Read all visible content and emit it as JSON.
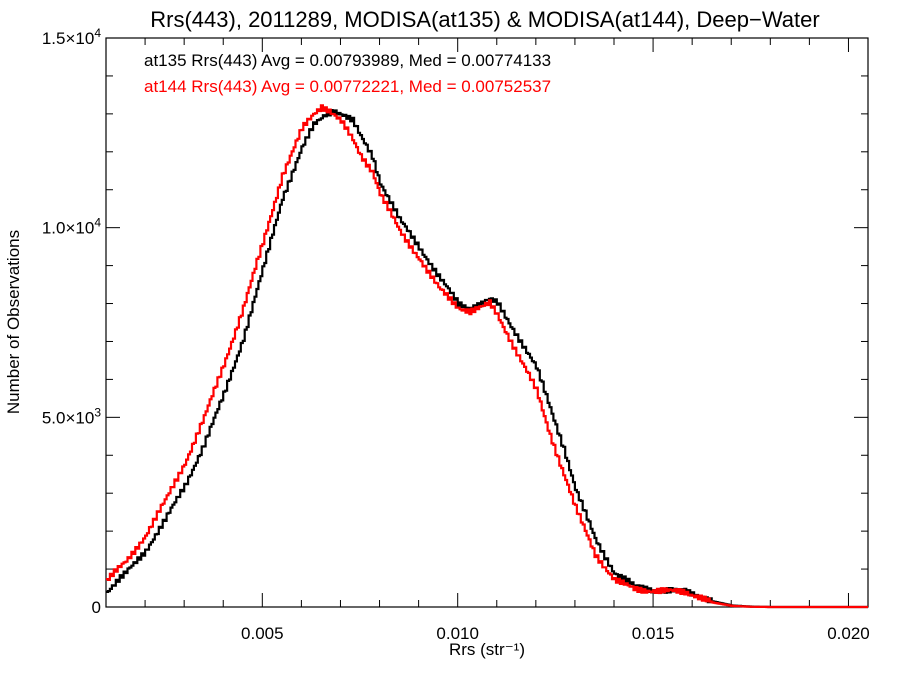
{
  "chart_data": {
    "type": "line",
    "title": "Rrs(443), 2011289, MODISA(at135) & MODISA(at144), Deep−Water",
    "xlabel": "Rrs (str⁻¹)",
    "ylabel": "Number of Observations",
    "xlim": [
      0.001,
      0.0205
    ],
    "ylim": [
      0,
      15000
    ],
    "x_ticks": [
      {
        "value": 0.005,
        "label": "0.005"
      },
      {
        "value": 0.01,
        "label": "0.010"
      },
      {
        "value": 0.015,
        "label": "0.015"
      },
      {
        "value": 0.02,
        "label": "0.020"
      }
    ],
    "y_ticks": [
      {
        "value": 0,
        "mantissa": "0",
        "exponent": ""
      },
      {
        "value": 5000,
        "mantissa": "5.0×10",
        "exponent": "3"
      },
      {
        "value": 10000,
        "mantissa": "1.0×10",
        "exponent": "4"
      },
      {
        "value": 15000,
        "mantissa": "1.5×10",
        "exponent": "4"
      }
    ],
    "grid": false,
    "step": true,
    "legend_placement": "top-left",
    "annotations": [
      {
        "text": "at135 Rrs(443) Avg = 0.00793989, Med = 0.00774133",
        "color": "#000000"
      },
      {
        "text": "at144 Rrs(443) Avg = 0.00772221, Med = 0.00752537",
        "color": "#ff0000"
      }
    ],
    "series": [
      {
        "color": "#000000",
        "x": [
          0.001,
          0.0015,
          0.002,
          0.0025,
          0.003,
          0.0035,
          0.004,
          0.0045,
          0.005,
          0.0055,
          0.006,
          0.0063,
          0.0066,
          0.0068,
          0.007,
          0.0073,
          0.0075,
          0.0078,
          0.008,
          0.0085,
          0.009,
          0.0095,
          0.01,
          0.0103,
          0.0106,
          0.0108,
          0.011,
          0.0113,
          0.0116,
          0.012,
          0.0123,
          0.0127,
          0.013,
          0.0135,
          0.014,
          0.0145,
          0.015,
          0.0155,
          0.0158,
          0.0162,
          0.0165,
          0.017,
          0.0175,
          0.018,
          0.019,
          0.02,
          0.0205
        ],
        "y": [
          400,
          900,
          1500,
          2300,
          3200,
          4300,
          5600,
          7100,
          8900,
          10800,
          12100,
          12700,
          13000,
          13100,
          13000,
          12800,
          12400,
          11900,
          11200,
          10200,
          9500,
          8700,
          8000,
          7900,
          8000,
          8100,
          8000,
          7500,
          7000,
          6300,
          5400,
          4200,
          3100,
          1800,
          900,
          550,
          450,
          420,
          410,
          300,
          150,
          40,
          10,
          0,
          0,
          0,
          0
        ]
      },
      {
        "color": "#ff0000",
        "x": [
          0.001,
          0.0015,
          0.002,
          0.0025,
          0.003,
          0.0035,
          0.004,
          0.0045,
          0.005,
          0.0055,
          0.006,
          0.0063,
          0.0065,
          0.0067,
          0.007,
          0.0073,
          0.0075,
          0.0078,
          0.008,
          0.0085,
          0.009,
          0.0095,
          0.01,
          0.0103,
          0.0106,
          0.0108,
          0.011,
          0.0113,
          0.0116,
          0.012,
          0.0123,
          0.0127,
          0.013,
          0.0135,
          0.014,
          0.0145,
          0.015,
          0.0155,
          0.0158,
          0.0162,
          0.0165,
          0.017,
          0.0175,
          0.018,
          0.019,
          0.02,
          0.0205
        ],
        "y": [
          700,
          1200,
          1900,
          2800,
          3800,
          5000,
          6400,
          7900,
          9600,
          11400,
          12600,
          13000,
          13200,
          13100,
          12800,
          12300,
          11900,
          11500,
          10900,
          9900,
          9200,
          8400,
          7900,
          7800,
          7900,
          8000,
          7700,
          7100,
          6500,
          5700,
          4700,
          3500,
          2600,
          1400,
          700,
          480,
          430,
          410,
          400,
          260,
          120,
          30,
          5,
          0,
          0,
          0,
          0
        ]
      }
    ]
  }
}
